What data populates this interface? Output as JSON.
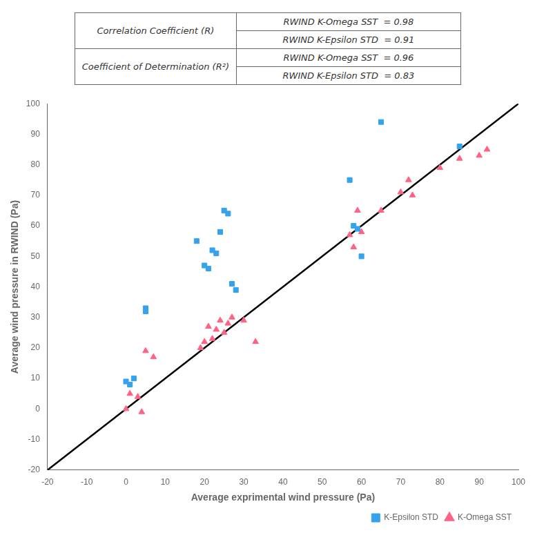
{
  "chart_data": {
    "type": "scatter",
    "xlabel": "Average exprimental wind pressure (Pa)",
    "ylabel": "Average wind pressure in RWIND (Pa)",
    "xlim": [
      -20,
      100
    ],
    "ylim": [
      -20,
      100
    ],
    "xticks": [
      -20,
      -10,
      0,
      10,
      20,
      30,
      40,
      50,
      60,
      70,
      80,
      90,
      100
    ],
    "yticks": [
      -20,
      -10,
      0,
      10,
      20,
      30,
      40,
      50,
      60,
      70,
      80,
      90,
      100
    ],
    "grid": false,
    "legend": "lower right",
    "series": [
      {
        "type": "line",
        "color": "black",
        "x": [
          -20,
          100
        ],
        "values": [
          -20,
          100
        ]
      },
      {
        "name": "K-Epsilon STD",
        "type": "scatter",
        "marker": "square",
        "color": "#36a2eb",
        "x": [
          0,
          1,
          2,
          5,
          5,
          18,
          20,
          21,
          22,
          23,
          24,
          25,
          26,
          27,
          28,
          57,
          58,
          59,
          60,
          65,
          85
        ],
        "values": [
          9,
          8,
          10,
          32,
          33,
          55,
          47,
          46,
          52,
          51,
          58,
          65,
          64,
          41,
          39,
          75,
          60,
          59,
          50,
          94,
          86
        ]
      },
      {
        "name": "K-Omega SST",
        "type": "scatter",
        "marker": "triangle",
        "color": "#ff6384",
        "x": [
          0,
          1,
          3,
          4,
          5,
          7,
          19,
          20,
          21,
          22,
          23,
          24,
          25,
          26,
          27,
          30,
          33,
          57,
          58,
          59,
          60,
          65,
          70,
          72,
          73,
          80,
          85,
          90,
          92
        ],
        "values": [
          0,
          5,
          4,
          -1,
          19,
          17,
          20,
          22,
          27,
          23,
          26,
          29,
          25,
          28,
          30,
          29,
          22,
          57,
          53,
          65,
          58,
          65,
          71,
          75,
          70,
          79,
          82,
          83,
          85
        ]
      }
    ],
    "annotations": [
      {
        "text": "Correlation Coefficient (R)",
        "lines": [
          "RWIND K-Omega SST  = 0.98",
          "RWIND K-Epsilon STD  = 0.91"
        ]
      },
      {
        "text": "Coefficient of Determination (R²)",
        "lines": [
          "RWIND K-Omega SST  = 0.96",
          "RWIND K-Epsilon STD  = 0.83"
        ]
      }
    ]
  }
}
